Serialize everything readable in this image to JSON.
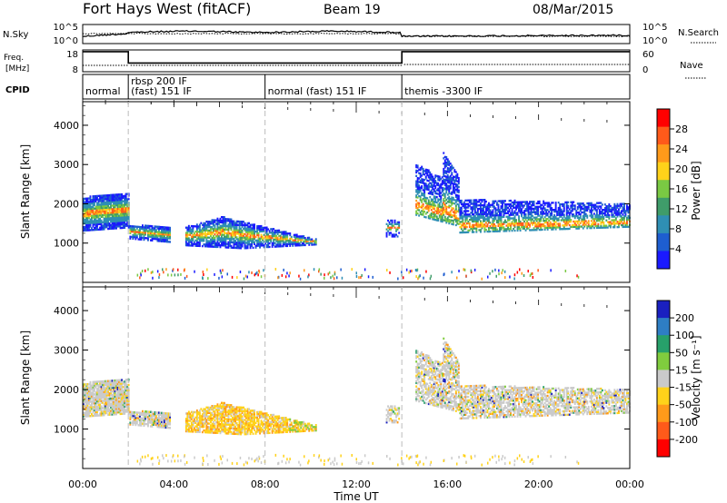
{
  "header": {
    "title": "Fort Hays West (fitACF)",
    "beam": "Beam 19",
    "date": "08/Mar/2015"
  },
  "summary": {
    "nsky_label": "N.Sky",
    "nsky_ticks": [
      "10^5",
      "10^0"
    ],
    "nsearch_label": "N.Search",
    "nsearch_ticks": [
      "10^5",
      "10^0"
    ],
    "freq_label_line1": "Freq.",
    "freq_label_line2": "[MHz]",
    "freq_ticks": [
      "18",
      "8"
    ],
    "nave_label": "Nave",
    "nave_ticks": [
      "60",
      "0"
    ],
    "cpid_label": "CPID",
    "cpid_segments": [
      {
        "label": "normal",
        "start_hour": 0.0,
        "end_hour": 2.0
      },
      {
        "label": "rbsp 200 IF",
        "label2": "(fast) 151 IF",
        "start_hour": 2.0,
        "end_hour": 8.0
      },
      {
        "label": "normal (fast) 151 IF",
        "start_hour": 8.0,
        "end_hour": 14.0
      },
      {
        "label": "themis -3300 IF",
        "start_hour": 14.0,
        "end_hour": 24.0
      }
    ],
    "freq_series": {
      "hours": [
        0,
        2.0,
        2.0,
        14.0,
        14.0,
        24
      ],
      "mhz": [
        17.2,
        17.2,
        12.0,
        12.0,
        17.2,
        17.2
      ]
    }
  },
  "chart_data": [
    {
      "type": "heatmap",
      "name": "power",
      "ylabel": "Slant Range [km]",
      "y_ticks": [
        1000,
        2000,
        3000,
        4000
      ],
      "ylim": [
        0,
        4600
      ],
      "colorbar_label": "Power [dB]",
      "colorbar_ticks": [
        4,
        8,
        12,
        16,
        20,
        24,
        28
      ],
      "colorbar_range": [
        0,
        32
      ],
      "colorbar_colors": [
        "#1a1aff",
        "#1e5ed0",
        "#2f8fb4",
        "#3f9c6a",
        "#7ac943",
        "#ffd21a",
        "#ff9a1a",
        "#ff5a1a",
        "#ff0000"
      ]
    },
    {
      "type": "heatmap",
      "name": "velocity",
      "ylabel": "Slant Range [km]",
      "y_ticks": [
        1000,
        2000,
        3000,
        4000
      ],
      "ylim": [
        0,
        4600
      ],
      "colorbar_label": "Velocity [m s⁻¹]",
      "colorbar_ticks": [
        "200",
        "100",
        "50",
        "15",
        "-15",
        "-50",
        "-100",
        "-200"
      ],
      "colorbar_colors": [
        "#1a20c0",
        "#2e7ec4",
        "#27a06a",
        "#80cc3e",
        "#cacaca",
        "#ffd21a",
        "#ff9a1a",
        "#ff5a1a",
        "#ff0000"
      ]
    }
  ],
  "xaxis": {
    "label": "Time UT",
    "ticks": [
      "00:00",
      "04:00",
      "08:00",
      "12:00",
      "16:00",
      "20:00",
      "00:00"
    ],
    "tick_hours": [
      0,
      4,
      8,
      12,
      16,
      20,
      24
    ],
    "xlim": [
      0,
      24
    ]
  },
  "dashed_markers_hours": [
    2.0,
    8.0,
    14.0
  ]
}
